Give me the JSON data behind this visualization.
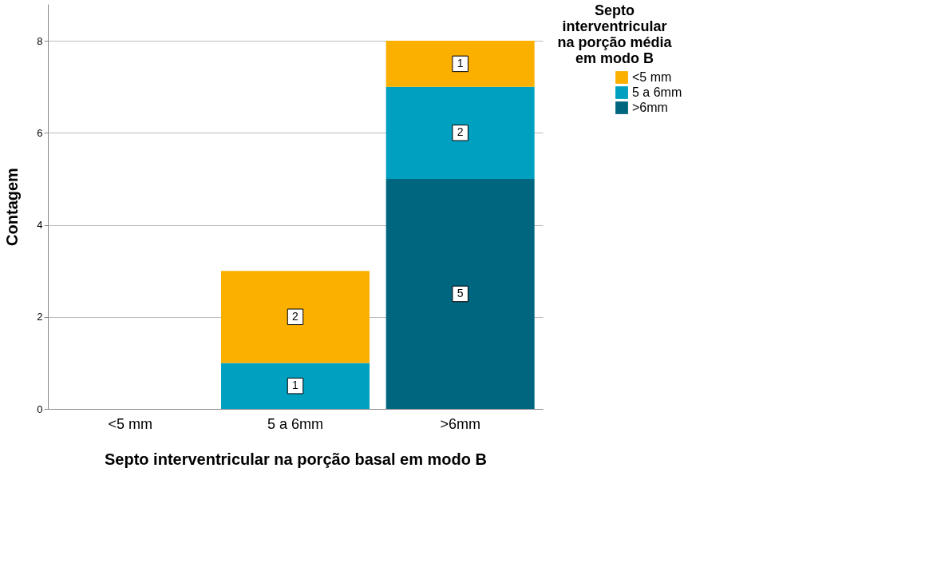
{
  "chart_data": {
    "type": "bar",
    "stacked": true,
    "xlabel": "Septo interventricular na porção basal em modo B",
    "ylabel": "Contagem",
    "legend_title": "Septo interventricular na porção média em modo B",
    "categories": [
      "<5 mm",
      "5 a 6mm",
      ">6mm"
    ],
    "series": [
      {
        "name": ">6mm",
        "color": "#00667f",
        "values": [
          null,
          null,
          5
        ]
      },
      {
        "name": "5 a 6mm",
        "color": "#00a0c0",
        "values": [
          null,
          1,
          2
        ]
      },
      {
        "name": "<5 mm",
        "color": "#fbb000",
        "values": [
          null,
          2,
          1
        ]
      }
    ],
    "ylim": [
      0,
      8.8
    ],
    "yticks": [
      0,
      2,
      4,
      6,
      8
    ],
    "grid": "y",
    "legend": "top right",
    "data_labels": true
  }
}
